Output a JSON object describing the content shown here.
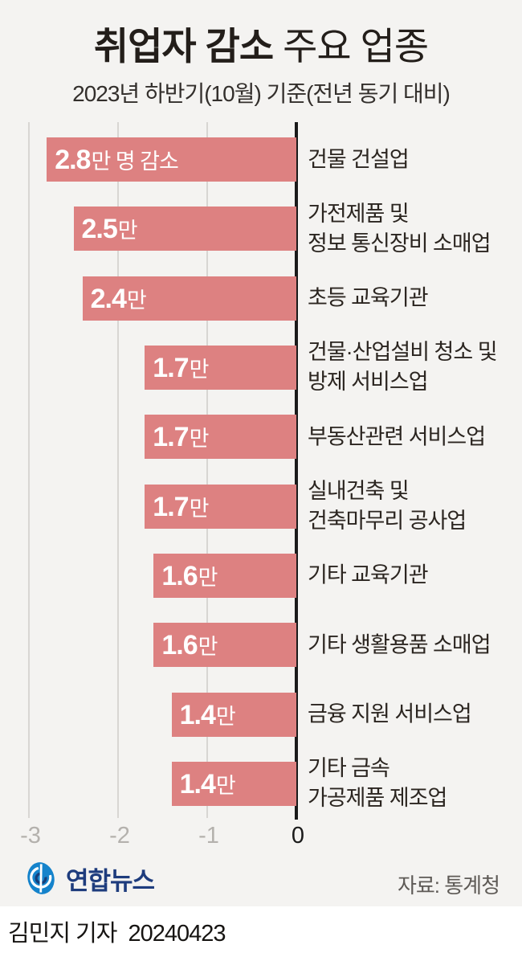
{
  "title": {
    "bold": "취업자 감소",
    "light": "주요 업종"
  },
  "subtitle": "2023년 하반기(10월) 기준(전년 동기 대비)",
  "chart_data": {
    "type": "bar",
    "orientation": "horizontal",
    "title": "취업자 감소 주요 업종",
    "subtitle": "2023년 하반기(10월) 기준(전년 동기 대비)",
    "unit": "만 명",
    "categories": [
      "건물 건설업",
      "가전제품 및 정보 통신장비 소매업",
      "초등 교육기관",
      "건물·산업설비 청소 및 방제 서비스업",
      "부동산관련 서비스업",
      "실내건축 및 건축마무리 공사업",
      "기타 교육기관",
      "기타 생활용품 소매업",
      "금융 지원 서비스업",
      "기타 금속 가공제품 제조업"
    ],
    "values": [
      -2.8,
      -2.5,
      -2.4,
      -1.7,
      -1.7,
      -1.7,
      -1.6,
      -1.6,
      -1.4,
      -1.4
    ],
    "bar_labels": [
      "2.8만 명 감소",
      "2.5만",
      "2.4만",
      "1.7만",
      "1.7만",
      "1.7만",
      "1.6만",
      "1.6만",
      "1.4만",
      "1.4만"
    ],
    "x_ticks": [
      -3,
      -2,
      -1,
      0
    ],
    "xlim": [
      -3.35,
      0
    ],
    "grid": true,
    "legend": false,
    "bar_color": "#dd8181",
    "source": "자료: 통계청"
  },
  "rows": [
    {
      "value_num": "2.8",
      "value_suffix": "만 명 감소",
      "category_lines": [
        "건물 건설업",
        ""
      ]
    },
    {
      "value_num": "2.5",
      "value_suffix": "만",
      "category_lines": [
        "가전제품 및",
        "정보 통신장비 소매업"
      ]
    },
    {
      "value_num": "2.4",
      "value_suffix": "만",
      "category_lines": [
        "초등 교육기관",
        ""
      ]
    },
    {
      "value_num": "1.7",
      "value_suffix": "만",
      "category_lines": [
        "건물·산업설비 청소 및",
        "방제 서비스업"
      ]
    },
    {
      "value_num": "1.7",
      "value_suffix": "만",
      "category_lines": [
        "부동산관련 서비스업",
        ""
      ]
    },
    {
      "value_num": "1.7",
      "value_suffix": "만",
      "category_lines": [
        "실내건축 및",
        "건축마무리 공사업"
      ]
    },
    {
      "value_num": "1.6",
      "value_suffix": "만",
      "category_lines": [
        "기타 교육기관",
        ""
      ]
    },
    {
      "value_num": "1.6",
      "value_suffix": "만",
      "category_lines": [
        "기타 생활용품 소매업",
        ""
      ]
    },
    {
      "value_num": "1.4",
      "value_suffix": "만",
      "category_lines": [
        "금융 지원 서비스업",
        ""
      ]
    },
    {
      "value_num": "1.4",
      "value_suffix": "만",
      "category_lines": [
        "기타 금속",
        "가공제품 제조업"
      ]
    }
  ],
  "axis": {
    "ticks": [
      "-3",
      "-2",
      "-1",
      "0"
    ]
  },
  "footer": {
    "logo_text": "연합뉴스",
    "source": "자료: 통계청"
  },
  "credit": {
    "name": "김민지 기자",
    "date": "20240423"
  },
  "colors": {
    "background": "#f4f3f1",
    "bar": "#dd8181",
    "zero_line": "#1a1a1a",
    "gridline": "#d8d6d3",
    "axis_tick_gray": "#b4b1ad",
    "category_text": "#2b2520",
    "logo_navy": "#1e3c7d",
    "logo_blue": "#1583cb",
    "source_text": "#5e5a56"
  }
}
